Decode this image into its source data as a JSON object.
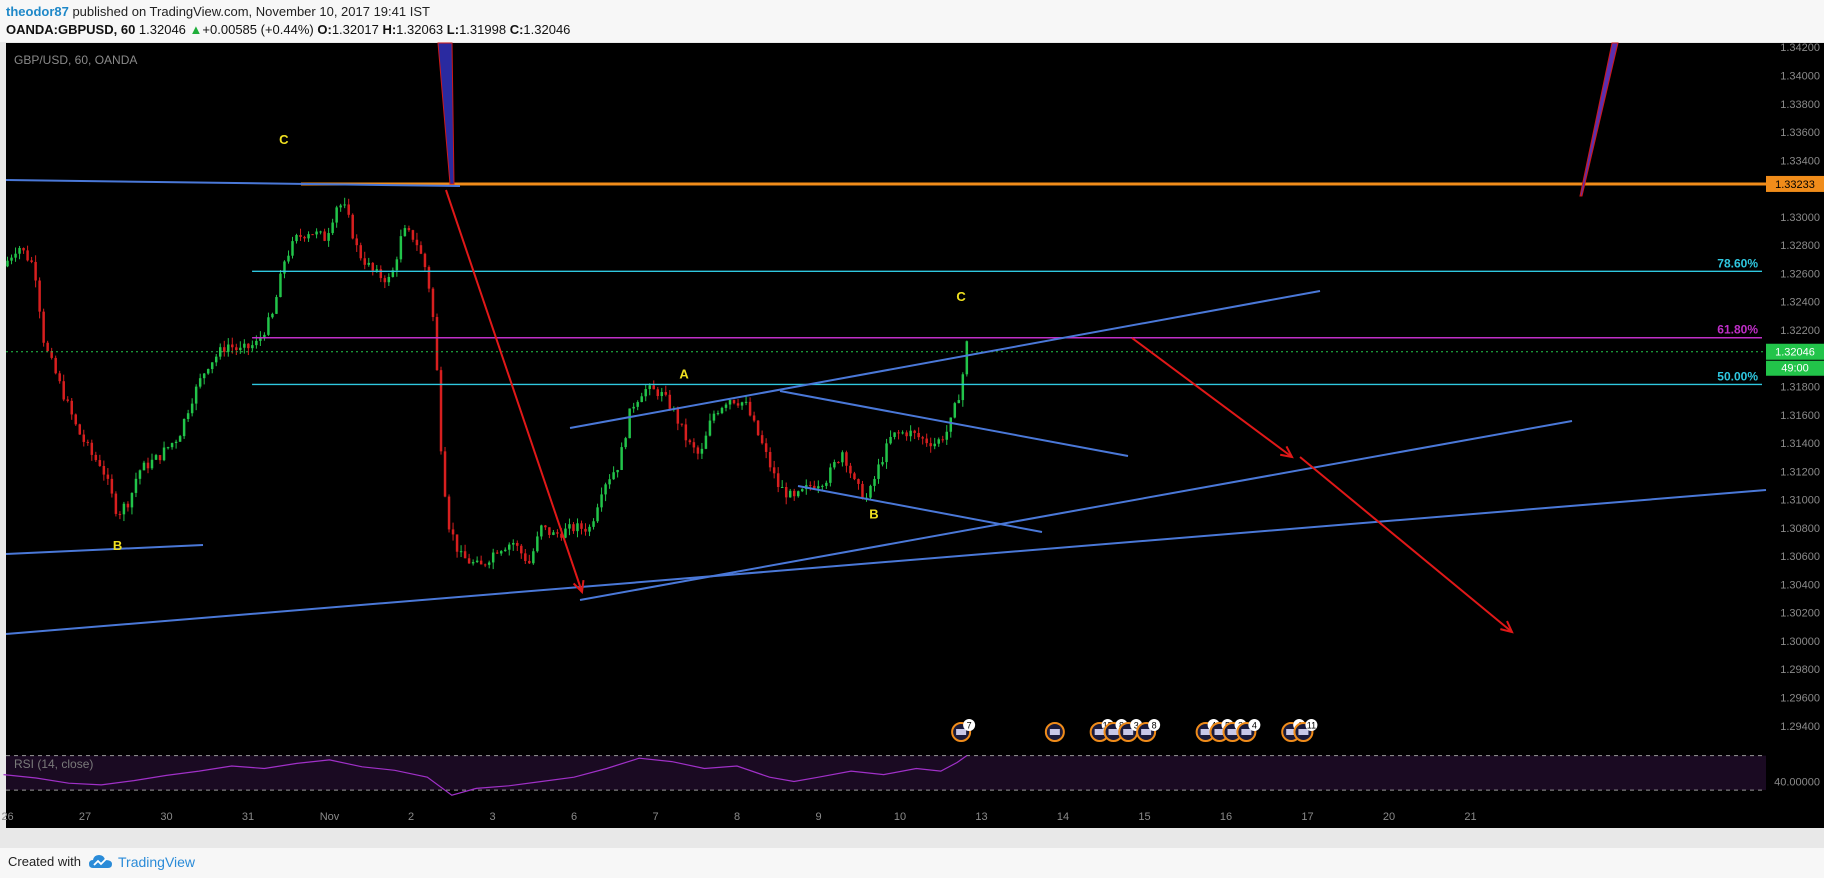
{
  "header": {
    "author": "theodor87",
    "published_text": " published on TradingView.com, November 10, 2017 19:41 IST",
    "symbol": "OANDA:GBPUSD, 60",
    "last": "1.32046",
    "change": "+0.00585 (+0.44%)",
    "open_label": "O:",
    "open": "1.32017",
    "high_label": "H:",
    "high": "1.32063",
    "low_label": "L:",
    "low": "1.31998",
    "close_label": "C:",
    "close": "1.32046"
  },
  "footer": {
    "created_with": "Created with",
    "brand": "TradingView"
  },
  "colors": {
    "background": "#000000",
    "up_candle": "#22c44a",
    "down_candle": "#d71f1f",
    "trendline": "#4a78d8",
    "resistance": "#f08c1a",
    "fib_cyan": "#2fc8e0",
    "fib_magenta": "#c02fc8",
    "arrow": "#e01818",
    "label_yellow": "#f0e020",
    "rsi": "#a030c8"
  },
  "chart_data": {
    "type": "candlestick",
    "pane_label": "GBP/USD, 60, OANDA",
    "ylim": [
      1.2925,
      1.3423
    ],
    "y_ticks": [
      "1.34200",
      "1.34000",
      "1.33800",
      "1.33600",
      "1.33400",
      "1.33000",
      "1.32800",
      "1.32600",
      "1.32400",
      "1.32200",
      "1.31800",
      "1.31600",
      "1.31400",
      "1.31200",
      "1.31000",
      "1.30800",
      "1.30600",
      "1.30400",
      "1.30200",
      "1.30000",
      "1.29800",
      "1.29600",
      "1.29400"
    ],
    "x_ticks": [
      {
        "label": "26",
        "d": -4.95
      },
      {
        "label": "27",
        "d": -4
      },
      {
        "label": "30",
        "d": -3
      },
      {
        "label": "31",
        "d": -2
      },
      {
        "label": "Nov",
        "d": -1
      },
      {
        "label": "2",
        "d": 0
      },
      {
        "label": "3",
        "d": 1
      },
      {
        "label": "6",
        "d": 2
      },
      {
        "label": "7",
        "d": 3
      },
      {
        "label": "8",
        "d": 4
      },
      {
        "label": "9",
        "d": 5
      },
      {
        "label": "10",
        "d": 6
      },
      {
        "label": "13",
        "d": 7
      },
      {
        "label": "14",
        "d": 8
      },
      {
        "label": "15",
        "d": 9
      },
      {
        "label": "16",
        "d": 10
      },
      {
        "label": "17",
        "d": 11
      },
      {
        "label": "20",
        "d": 12
      },
      {
        "label": "21",
        "d": 13
      }
    ],
    "price_path": [
      [
        -5.0,
        1.3265
      ],
      [
        -4.82,
        1.328
      ],
      [
        -4.62,
        1.3265
      ],
      [
        -4.5,
        1.321
      ],
      [
        -4.3,
        1.318
      ],
      [
        -4.1,
        1.315
      ],
      [
        -3.9,
        1.313
      ],
      [
        -3.8,
        1.3125
      ],
      [
        -3.6,
        1.309
      ],
      [
        -3.45,
        1.31
      ],
      [
        -3.35,
        1.312
      ],
      [
        -3.1,
        1.313
      ],
      [
        -2.85,
        1.3145
      ],
      [
        -2.7,
        1.317
      ],
      [
        -2.5,
        1.3195
      ],
      [
        -2.25,
        1.321
      ],
      [
        -2.1,
        1.3205
      ],
      [
        -1.9,
        1.321
      ],
      [
        -1.7,
        1.323
      ],
      [
        -1.55,
        1.327
      ],
      [
        -1.4,
        1.3285
      ],
      [
        -1.25,
        1.329
      ],
      [
        -1.05,
        1.3285
      ],
      [
        -0.9,
        1.331
      ],
      [
        -0.8,
        1.3305
      ],
      [
        -0.65,
        1.3275
      ],
      [
        -0.45,
        1.326
      ],
      [
        -0.25,
        1.3255
      ],
      [
        -0.1,
        1.329
      ],
      [
        0.05,
        1.3285
      ],
      [
        0.2,
        1.326
      ],
      [
        0.3,
        1.3215
      ],
      [
        0.35,
        1.315
      ],
      [
        0.45,
        1.3085
      ],
      [
        0.6,
        1.306
      ],
      [
        0.85,
        1.3052
      ],
      [
        1.05,
        1.3065
      ],
      [
        1.25,
        1.307
      ],
      [
        1.45,
        1.3055
      ],
      [
        1.6,
        1.308
      ],
      [
        1.75,
        1.3075
      ],
      [
        2.0,
        1.308
      ],
      [
        2.2,
        1.308
      ],
      [
        2.35,
        1.311
      ],
      [
        2.55,
        1.3125
      ],
      [
        2.7,
        1.3165
      ],
      [
        2.85,
        1.3178
      ],
      [
        3.05,
        1.3176
      ],
      [
        3.2,
        1.3165
      ],
      [
        3.4,
        1.314
      ],
      [
        3.55,
        1.313
      ],
      [
        3.7,
        1.316
      ],
      [
        3.9,
        1.3172
      ],
      [
        4.1,
        1.3168
      ],
      [
        4.3,
        1.314
      ],
      [
        4.5,
        1.311
      ],
      [
        4.7,
        1.31
      ],
      [
        4.9,
        1.311
      ],
      [
        5.1,
        1.3115
      ],
      [
        5.3,
        1.3135
      ],
      [
        5.45,
        1.311
      ],
      [
        5.6,
        1.31
      ],
      [
        5.75,
        1.3125
      ],
      [
        5.9,
        1.3145
      ],
      [
        6.1,
        1.3148
      ],
      [
        6.3,
        1.3142
      ],
      [
        6.45,
        1.314
      ],
      [
        6.6,
        1.315
      ],
      [
        6.75,
        1.318
      ],
      [
        6.82,
        1.321
      ]
    ],
    "horizontal_levels": [
      {
        "name": "resistance",
        "price": 1.33233,
        "label": "1.33233"
      },
      {
        "name": "fib-78.6",
        "price": 1.32615,
        "label": "78.60%"
      },
      {
        "name": "fib-61.8",
        "price": 1.32145,
        "label": "61.80%"
      },
      {
        "name": "fib-50.0",
        "price": 1.31815,
        "label": "50.00%"
      }
    ],
    "current_price": {
      "price": 1.32046,
      "label": "1.32046",
      "countdown": "49:00"
    },
    "wave_labels": [
      {
        "text": "C",
        "d": -1.56,
        "p": 1.33515
      },
      {
        "text": "B",
        "d": -3.6,
        "p": 1.30645
      },
      {
        "text": "A",
        "d": 3.35,
        "p": 1.31855
      },
      {
        "text": "B",
        "d": 5.68,
        "p": 1.30865
      },
      {
        "text": "C",
        "d": 6.75,
        "p": 1.32405
      }
    ],
    "event_markers": [
      {
        "d": 6.75,
        "count": "7"
      },
      {
        "d": 7.9,
        "count": ""
      },
      {
        "d": 8.45,
        "count": "15"
      },
      {
        "d": 8.62,
        "count": "8"
      },
      {
        "d": 8.8,
        "count": "3"
      },
      {
        "d": 9.02,
        "count": "8"
      },
      {
        "d": 9.75,
        "count": "4"
      },
      {
        "d": 9.92,
        "count": "5"
      },
      {
        "d": 10.08,
        "count": "2"
      },
      {
        "d": 10.25,
        "count": "4"
      },
      {
        "d": 10.8,
        "count": "4"
      },
      {
        "d": 10.95,
        "count": "11"
      }
    ],
    "rsi": {
      "label": "RSI (14, close)",
      "level_label": "40.00000",
      "path": [
        [
          -5.0,
          48
        ],
        [
          -4.6,
          44
        ],
        [
          -4.2,
          38
        ],
        [
          -3.8,
          36
        ],
        [
          -3.4,
          41
        ],
        [
          -3.0,
          47
        ],
        [
          -2.6,
          52
        ],
        [
          -2.2,
          58
        ],
        [
          -1.8,
          55
        ],
        [
          -1.4,
          61
        ],
        [
          -1.0,
          65
        ],
        [
          -0.6,
          57
        ],
        [
          -0.2,
          53
        ],
        [
          0.2,
          45
        ],
        [
          0.5,
          24
        ],
        [
          0.8,
          32
        ],
        [
          1.2,
          35
        ],
        [
          1.6,
          40
        ],
        [
          2.0,
          45
        ],
        [
          2.4,
          55
        ],
        [
          2.8,
          67
        ],
        [
          3.2,
          63
        ],
        [
          3.6,
          55
        ],
        [
          4.0,
          58
        ],
        [
          4.4,
          45
        ],
        [
          4.7,
          40
        ],
        [
          5.0,
          45
        ],
        [
          5.4,
          52
        ],
        [
          5.8,
          48
        ],
        [
          6.2,
          55
        ],
        [
          6.5,
          52
        ],
        [
          6.7,
          62
        ],
        [
          6.82,
          70
        ]
      ]
    }
  }
}
